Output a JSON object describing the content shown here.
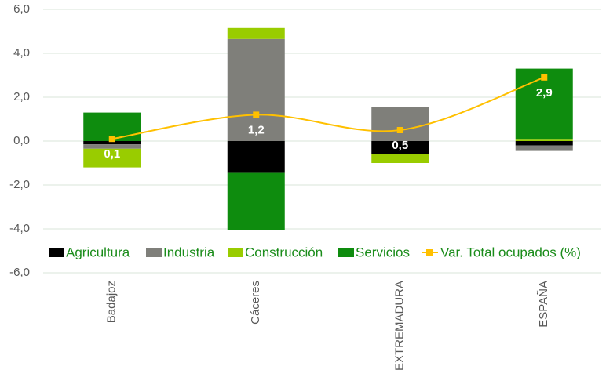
{
  "chart_data": {
    "type": "stacked_bar_line",
    "categories": [
      "Badajoz",
      "Cáceres",
      "EXTREMADURA",
      "ESPAÑA"
    ],
    "series": [
      {
        "name": "Agricultura",
        "color": "#000000",
        "values": [
          -0.15,
          -1.45,
          -0.6,
          -0.2
        ]
      },
      {
        "name": "Industria",
        "color": "#7f7f7a",
        "values": [
          -0.2,
          4.65,
          1.55,
          -0.25
        ]
      },
      {
        "name": "Construcción",
        "color": "#99cc00",
        "values": [
          -0.85,
          0.5,
          -0.4,
          0.1
        ]
      },
      {
        "name": "Servicios",
        "color": "#0e8c0e",
        "values": [
          1.3,
          -2.6,
          0,
          3.2
        ]
      }
    ],
    "line": {
      "name": "Var. Total ocupados (%)",
      "color": "#ffc000",
      "values": [
        0.1,
        1.2,
        0.5,
        2.9
      ],
      "value_labels": [
        "0,1",
        "1,2",
        "0,5",
        "2,9"
      ]
    },
    "ylim": [
      -6,
      6
    ],
    "yticks": [
      {
        "value": -6,
        "label": "-6,0"
      },
      {
        "value": -4,
        "label": "-4,0"
      },
      {
        "value": -2,
        "label": "-2,0"
      },
      {
        "value": 0,
        "label": "0,0"
      },
      {
        "value": 2,
        "label": "2,0"
      },
      {
        "value": 4,
        "label": "4,0"
      },
      {
        "value": 6,
        "label": "6,0"
      }
    ],
    "grid": true,
    "legend": "bottom"
  }
}
